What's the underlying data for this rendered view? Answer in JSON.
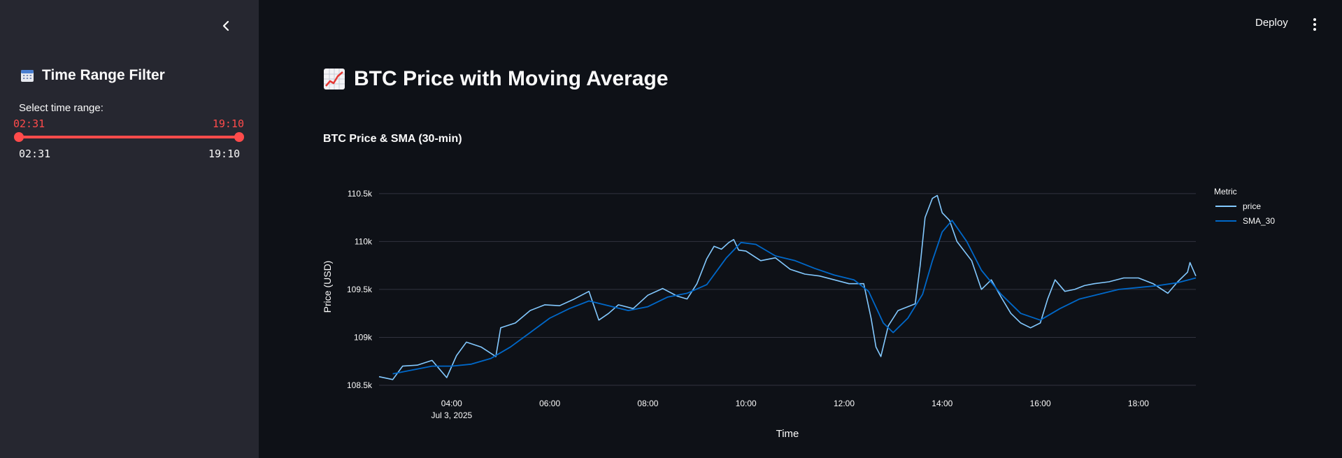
{
  "sidebar": {
    "title": "Time Range Filter",
    "title_icon": "calendar-icon",
    "slider_label": "Select time range:",
    "range_start": "02:31",
    "range_end": "19:10",
    "min_label": "02:31",
    "max_label": "19:10"
  },
  "header": {
    "deploy_label": "Deploy"
  },
  "main": {
    "title": "BTC Price with Moving Average",
    "title_icon": "chart-increasing-icon",
    "chart_title": "BTC Price & SMA (30-min)"
  },
  "colors": {
    "accent": "#ff4b4b",
    "price": "#83c9ff",
    "sma": "#0068c9",
    "background": "#0e1117",
    "sidebar": "#262730"
  },
  "chart_data": {
    "type": "line",
    "title": "BTC Price & SMA (30-min)",
    "xlabel": "Time",
    "ylabel": "Price (USD)",
    "xlim": [
      2.52,
      19.17
    ],
    "ylim": [
      108500,
      110550
    ],
    "x_ticks": [
      "04:00",
      "06:00",
      "08:00",
      "10:00",
      "12:00",
      "14:00",
      "16:00",
      "18:00"
    ],
    "x_tick_values": [
      4,
      6,
      8,
      10,
      12,
      14,
      16,
      18
    ],
    "x_subtick": "Jul 3, 2025",
    "y_ticks": [
      "108.5k",
      "109k",
      "109.5k",
      "110k",
      "110.5k"
    ],
    "y_tick_values": [
      108500,
      109000,
      109500,
      110000,
      110500
    ],
    "legend_title": "Metric",
    "legend_position": "right",
    "grid": true,
    "series": [
      {
        "name": "price",
        "x": [
          2.52,
          2.8,
          3.0,
          3.3,
          3.6,
          3.9,
          4.1,
          4.3,
          4.6,
          4.9,
          5.0,
          5.3,
          5.6,
          5.9,
          6.2,
          6.5,
          6.8,
          7.0,
          7.2,
          7.4,
          7.7,
          8.0,
          8.3,
          8.6,
          8.8,
          9.0,
          9.2,
          9.35,
          9.5,
          9.65,
          9.75,
          9.85,
          10.0,
          10.3,
          10.6,
          10.9,
          11.2,
          11.5,
          11.8,
          12.1,
          12.4,
          12.55,
          12.65,
          12.75,
          12.9,
          13.1,
          13.3,
          13.45,
          13.55,
          13.65,
          13.8,
          13.9,
          14.0,
          14.15,
          14.3,
          14.45,
          14.6,
          14.8,
          15.0,
          15.2,
          15.4,
          15.6,
          15.8,
          16.0,
          16.15,
          16.3,
          16.5,
          16.7,
          16.9,
          17.1,
          17.4,
          17.7,
          18.0,
          18.3,
          18.6,
          18.8,
          19.0,
          19.05,
          19.17
        ],
        "values": [
          108590,
          108560,
          108700,
          108710,
          108760,
          108580,
          108810,
          108950,
          108900,
          108800,
          109100,
          109150,
          109280,
          109340,
          109330,
          109400,
          109480,
          109180,
          109250,
          109340,
          109300,
          109440,
          109510,
          109430,
          109400,
          109560,
          109820,
          109950,
          109920,
          109990,
          110020,
          109910,
          109900,
          109800,
          109830,
          109710,
          109660,
          109640,
          109600,
          109560,
          109560,
          109200,
          108900,
          108800,
          109120,
          109280,
          109320,
          109350,
          109750,
          110250,
          110450,
          110480,
          110300,
          110220,
          110000,
          109900,
          109800,
          109500,
          109600,
          109420,
          109250,
          109150,
          109100,
          109150,
          109400,
          109600,
          109480,
          109500,
          109540,
          109560,
          109580,
          109620,
          109620,
          109560,
          109460,
          109580,
          109680,
          109780,
          109640
        ]
      },
      {
        "name": "SMA_30",
        "x": [
          2.8,
          3.2,
          3.6,
          4.0,
          4.4,
          4.8,
          5.2,
          5.6,
          6.0,
          6.4,
          6.8,
          7.2,
          7.6,
          8.0,
          8.4,
          8.8,
          9.2,
          9.6,
          9.9,
          10.2,
          10.6,
          11.0,
          11.4,
          11.8,
          12.2,
          12.5,
          12.8,
          13.0,
          13.3,
          13.6,
          13.8,
          14.0,
          14.2,
          14.5,
          14.8,
          15.2,
          15.6,
          16.0,
          16.4,
          16.8,
          17.2,
          17.6,
          18.0,
          18.4,
          18.8,
          19.17
        ],
        "values": [
          108620,
          108660,
          108700,
          108700,
          108720,
          108780,
          108900,
          109050,
          109200,
          109300,
          109380,
          109330,
          109280,
          109320,
          109420,
          109460,
          109550,
          109830,
          109990,
          109970,
          109850,
          109800,
          109720,
          109650,
          109600,
          109480,
          109150,
          109050,
          109200,
          109450,
          109800,
          110100,
          110220,
          110000,
          109700,
          109450,
          109250,
          109180,
          109300,
          109400,
          109450,
          109500,
          109520,
          109540,
          109570,
          109620
        ]
      }
    ]
  }
}
